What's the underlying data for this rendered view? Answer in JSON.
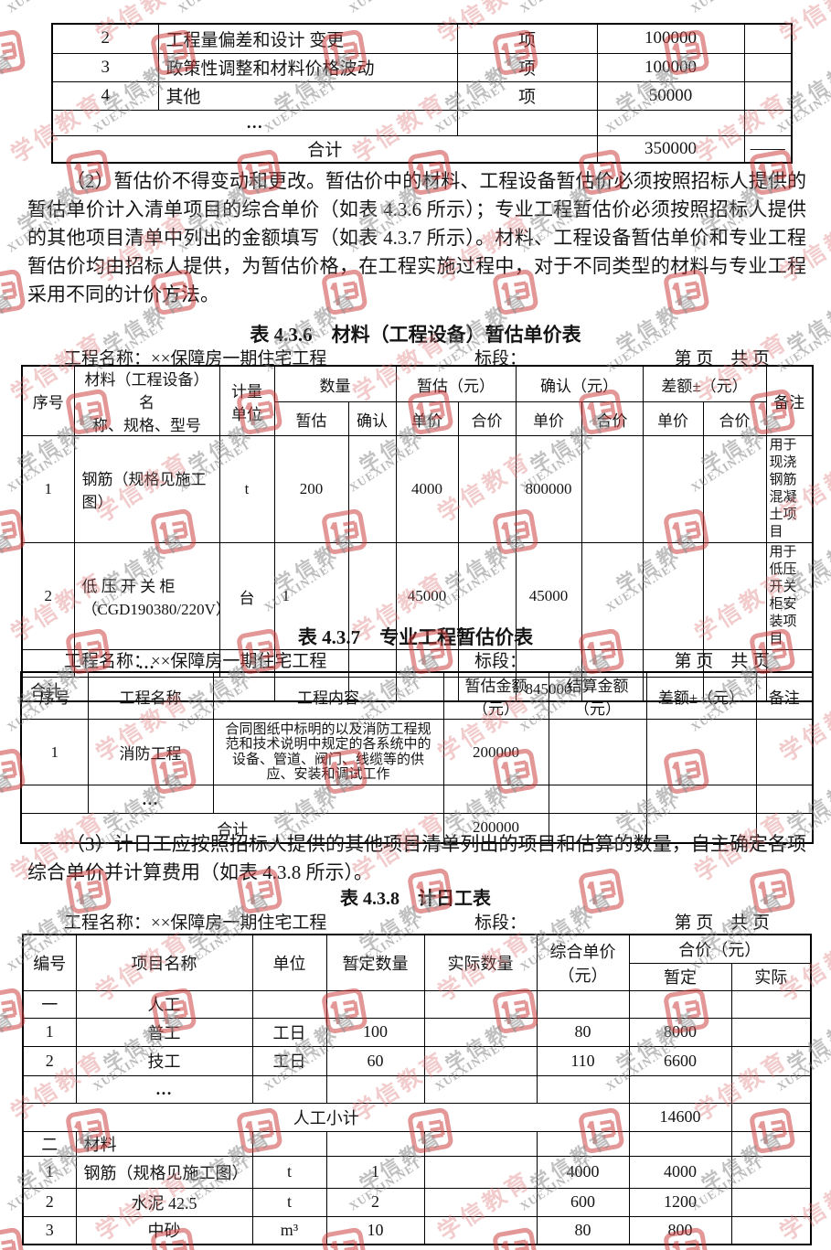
{
  "watermark": {
    "cn": "学信教育",
    "en": "XUEXIN.NET"
  },
  "topTable": {
    "rows": [
      {
        "seq": "2",
        "name": "工程量偏差和设计 变更",
        "unit": "项",
        "amount": "100000"
      },
      {
        "seq": "3",
        "name": "政策性调整和材料价格波动",
        "unit": "项",
        "amount": "100000"
      },
      {
        "seq": "4",
        "name": "其他",
        "unit": "项",
        "amount": "50000"
      }
    ],
    "ellipsis": "…",
    "total": {
      "label": "合计",
      "amount": "350000",
      "note": "——"
    }
  },
  "para2": "（2）暂估价不得变动和更改。暂估价中的材料、工程设备暂估价必须按照招标人提供的暂估单价计入清单项目的综合单价（如表 4.3.6 所示）；专业工程暂估价必须按照招标人提供的其他项目清单中列出的金额填写（如表 4.3.7 所示）。材料、工程设备暂估单价和专业工程暂估价均由招标人提供，为暂估价格，在工程实施过程中，对于不同类型的材料与专业工程采用不同的计价方法。",
  "t436": {
    "title": "表 4.3.6　材料（工程设备）暂估单价表",
    "meta": {
      "project": "工程名称：××保障房一期住宅工程",
      "section": "标段：",
      "page": "第 页　共 页"
    },
    "h": {
      "seq": "序号",
      "name": "材料（工程设备）名\n称、规格、型号",
      "unit": "计量\n单位",
      "qty": "数量",
      "est": "暂估（元）",
      "conf": "确认（元）",
      "diff": "差额±（元）",
      "note": "备注",
      "sub_est": "暂估",
      "sub_conf": "确认",
      "price": "单价",
      "total": "合价"
    },
    "rows": [
      {
        "seq": "1",
        "name": "钢筋（规格见施工图）",
        "unit": "t",
        "qty_est": "200",
        "price_est": "4000",
        "price_conf": "800000",
        "note": "用于现浇钢筋混凝土项目"
      },
      {
        "seq": "2",
        "name": "低 压 开 关 柜\n（CGD190380/220V）",
        "unit": "台",
        "qty_est": "1",
        "price_est": "45000",
        "price_conf": "45000",
        "note": "用于低压开关柜安装项目"
      }
    ],
    "ellipsis": "…",
    "total": {
      "label": "合计",
      "price_conf": "845000"
    }
  },
  "t437": {
    "title": "表 4.3.7　专业工程暂估价表",
    "meta": {
      "project": "工程名称：××保障房一期住宅工程",
      "section": "标段：",
      "page": "第 页　共 页"
    },
    "h": {
      "seq": "序号",
      "name": "工程名称",
      "content": "工程内容",
      "est": "暂估金额（元）",
      "settle": "结算金额（元）",
      "diff": "差额±（元）",
      "note": "备注"
    },
    "rows": [
      {
        "seq": "1",
        "name": "消防工程",
        "content": "合同图纸中标明的以及消防工程规范和技术说明中规定的各系统中的设备、管道、阀门、线缆等的供应、安装和调试工作",
        "est": "200000"
      }
    ],
    "ellipsis": "…",
    "total": {
      "label": "合计",
      "est": "200000"
    }
  },
  "para3": "（3）计日工应按照招标人提供的其他项目清单列出的项目和估算的数量，自主确定各项综合单价并计算费用（如表 4.3.8 所示）。",
  "t438": {
    "title": "表 4.3.8　计日工表",
    "meta": {
      "project": "工程名称：××保障房一期住宅工程",
      "section": "标段：",
      "page": "第 页　共 页"
    },
    "h": {
      "seq": "编号",
      "name": "项目名称",
      "unit": "单位",
      "qty_tent": "暂定数量",
      "qty_act": "实际数量",
      "price": "综合单价\n（元）",
      "total": "合价（元）",
      "sub_tent": "暂定",
      "sub_act": "实际"
    },
    "labor_section": {
      "seq": "一",
      "name": "人工"
    },
    "labor_rows": [
      {
        "seq": "1",
        "name": "普工",
        "unit": "工日",
        "qty": "100",
        "price": "80",
        "total_tent": "8000"
      },
      {
        "seq": "2",
        "name": "技工",
        "unit": "工日",
        "qty": "60",
        "price": "110",
        "total_tent": "6600"
      }
    ],
    "ellipsis": "…",
    "labor_subtotal": {
      "label": "人工小计",
      "total_tent": "14600"
    },
    "material_section": {
      "seq": "二",
      "name": "材料"
    },
    "material_rows": [
      {
        "seq": "1",
        "name": "钢筋（规格见施工图）",
        "unit": "t",
        "qty": "1",
        "price": "4000",
        "total_tent": "4000"
      },
      {
        "seq": "2",
        "name": "水泥 42.5",
        "unit": "t",
        "qty": "2",
        "price": "600",
        "total_tent": "1200"
      },
      {
        "seq": "3",
        "name": "中砂",
        "unit": "m³",
        "qty": "10",
        "price": "80",
        "total_tent": "800"
      }
    ]
  }
}
